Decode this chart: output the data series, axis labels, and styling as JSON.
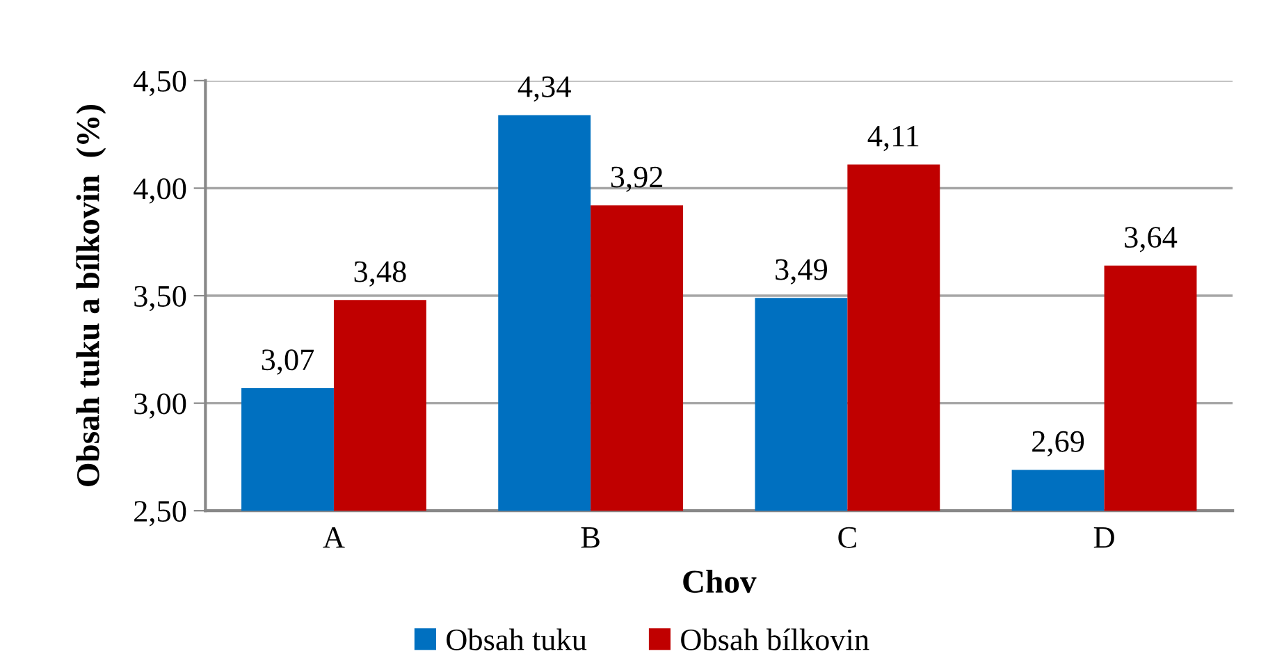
{
  "chart_data": {
    "type": "bar",
    "xlabel": "Chov",
    "ylabel": "Obsah tuku a bílkovin  (%)",
    "categories": [
      "A",
      "B",
      "C",
      "D"
    ],
    "series": [
      {
        "name": "Obsah tuku",
        "color": "#0070c0",
        "values": [
          3.07,
          4.34,
          3.49,
          2.69
        ],
        "value_labels": [
          "3,07",
          "4,34",
          "3,49",
          "2,69"
        ]
      },
      {
        "name": "Obsah bílkovin",
        "color": "#c00000",
        "values": [
          3.48,
          3.92,
          4.11,
          3.64
        ],
        "value_labels": [
          "3,48",
          "3,92",
          "4,11",
          "3,64"
        ]
      }
    ],
    "ylim": [
      2.5,
      4.5
    ],
    "yticks": [
      {
        "value": 2.5,
        "label": "2,50"
      },
      {
        "value": 3.0,
        "label": "3,00"
      },
      {
        "value": 3.5,
        "label": "3,50"
      },
      {
        "value": 4.0,
        "label": "4,00"
      },
      {
        "value": 4.5,
        "label": "4,50"
      }
    ],
    "grid": "y",
    "legend": "bottom"
  }
}
